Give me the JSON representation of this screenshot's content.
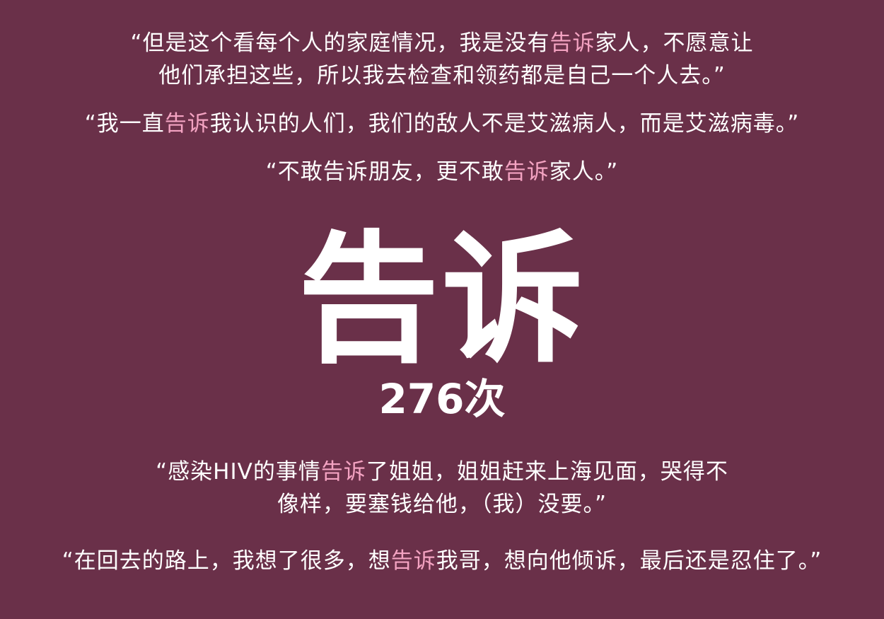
{
  "highlight_color": "#f4a3c2",
  "background_color": "#6a3049",
  "quotes": [
    {
      "lines": [
        {
          "pre": "“但是这个看每个人的家庭情况，我是没有",
          "hl": "告诉",
          "post": "家人，不愿意让"
        },
        {
          "pre": "他们承担这些，所以我去检查和领药都是自己一个人去。”",
          "hl": "",
          "post": ""
        }
      ]
    },
    {
      "lines": [
        {
          "pre": "“我一直",
          "hl": "告诉",
          "post": "我认识的人们，我们的敌人不是艾滋病人，而是艾滋病毒。”"
        }
      ]
    },
    {
      "lines": [
        {
          "pre": "“不敢告诉朋友，更不敢",
          "hl": "告诉",
          "post": "家人。”"
        }
      ]
    },
    {
      "lines": [
        {
          "pre": "“感染HIV的事情",
          "hl": "告诉",
          "post": "了姐姐，姐姐赶来上海见面，哭得不"
        },
        {
          "pre": "像样，要塞钱给他，（我）没要。”",
          "hl": "",
          "post": ""
        }
      ]
    },
    {
      "lines": [
        {
          "pre": "“在回去的路上，我想了很多，想",
          "hl": "告诉",
          "post": "我哥，想向他倾诉，最后还是忍住了。”"
        }
      ]
    }
  ],
  "keyword": "告诉",
  "count_label": "276次"
}
